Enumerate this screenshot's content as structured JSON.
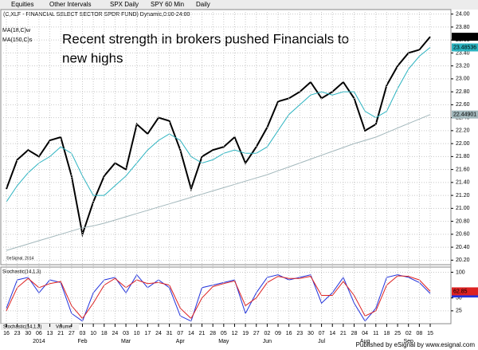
{
  "ui": {
    "toolbar": [
      "Equities",
      "Other Intervals",
      "SPX Daily",
      "SPY 60 Min",
      "Daily"
    ],
    "watermark": "©eSignal, 2014",
    "bottom_tabs": [
      "Stochastic(14,1,3)",
      "Volume"
    ],
    "footer": "Published by eSignal by www.esignal.com"
  },
  "chart_data": [
    {
      "type": "line",
      "title": "(C,XLF - FINANCIAL SELECT SECTOR SPDR FUND) Dynamic,0:00-24:00",
      "annotation": [
        "Recent strength in brokers pushed Financials to",
        "new highs"
      ],
      "categories": [
        "16",
        "23",
        "30",
        "06",
        "13",
        "21",
        "27",
        "03",
        "10",
        "18",
        "24",
        "03",
        "10",
        "17",
        "24",
        "31",
        "07",
        "14",
        "21",
        "28",
        "05",
        "12",
        "19",
        "27",
        "02",
        "09",
        "16",
        "23",
        "30",
        "07",
        "14",
        "21",
        "28",
        "04",
        "11",
        "18",
        "25",
        "02",
        "08",
        "15"
      ],
      "months": [
        null,
        null,
        null,
        "2014",
        null,
        null,
        null,
        "Feb",
        null,
        null,
        null,
        "Mar",
        null,
        null,
        null,
        null,
        "Apr",
        null,
        null,
        null,
        "May",
        null,
        null,
        null,
        "Jun",
        null,
        null,
        null,
        null,
        "Jul",
        null,
        null,
        null,
        "Aug",
        null,
        null,
        null,
        "Sep",
        null,
        null
      ],
      "series": [
        {
          "name": "XLF",
          "color": "#000000",
          "values": [
            21.3,
            21.75,
            21.9,
            21.8,
            22.05,
            22.1,
            21.5,
            20.6,
            21.1,
            21.5,
            21.7,
            21.6,
            22.3,
            22.15,
            22.4,
            22.35,
            21.9,
            21.3,
            21.8,
            21.9,
            21.95,
            22.1,
            21.7,
            21.95,
            22.25,
            22.65,
            22.7,
            22.8,
            22.95,
            22.7,
            22.8,
            22.95,
            22.7,
            22.2,
            22.3,
            22.9,
            23.2,
            23.4,
            23.45,
            23.65
          ]
        },
        {
          "name": "MA(18,C)w",
          "color": "#2bb3c0",
          "values": [
            21.1,
            21.35,
            21.55,
            21.7,
            21.8,
            21.95,
            21.85,
            21.5,
            21.2,
            21.2,
            21.35,
            21.5,
            21.7,
            21.9,
            22.05,
            22.15,
            22.05,
            21.8,
            21.7,
            21.75,
            21.85,
            21.9,
            21.85,
            21.85,
            21.95,
            22.2,
            22.45,
            22.6,
            22.75,
            22.8,
            22.75,
            22.8,
            22.8,
            22.5,
            22.4,
            22.5,
            22.85,
            23.15,
            23.35,
            23.48536
          ]
        },
        {
          "name": "MA(150,C)s",
          "color": "#a3b8bc",
          "values": [
            20.35,
            20.4,
            20.45,
            20.5,
            20.55,
            20.6,
            20.65,
            20.7,
            20.73,
            20.77,
            20.82,
            20.87,
            20.92,
            20.97,
            21.02,
            21.07,
            21.12,
            21.17,
            21.22,
            21.27,
            21.32,
            21.37,
            21.42,
            21.47,
            21.52,
            21.58,
            21.64,
            21.7,
            21.76,
            21.82,
            21.88,
            21.94,
            22.0,
            22.05,
            22.1,
            22.17,
            22.24,
            22.31,
            22.38,
            22.44901
          ]
        }
      ],
      "ylim": [
        20.13,
        24.07
      ],
      "yticks": [
        {
          "value": 20.2,
          "label": "20.20"
        },
        {
          "value": 20.4,
          "label": "20.40"
        },
        {
          "value": 20.6,
          "label": "20.60"
        },
        {
          "value": 20.8,
          "label": "20.80"
        },
        {
          "value": 21,
          "label": "21.00"
        },
        {
          "value": 21.2,
          "label": "21.20"
        },
        {
          "value": 21.4,
          "label": "21.40"
        },
        {
          "value": 21.6,
          "label": "21.60"
        },
        {
          "value": 21.8,
          "label": "21.80"
        },
        {
          "value": 22,
          "label": "22.00"
        },
        {
          "value": 22.2,
          "label": "22.20"
        },
        {
          "value": 22.4,
          "label": "22.40"
        },
        {
          "value": 22.6,
          "label": "22.60"
        },
        {
          "value": 22.8,
          "label": "22.80"
        },
        {
          "value": 23,
          "label": "23.00"
        },
        {
          "value": 23.2,
          "label": "23.20"
        },
        {
          "value": 23.4,
          "label": "23.40"
        },
        {
          "value": 23.6,
          "label": "23.60"
        },
        {
          "value": 23.8,
          "label": "23.80"
        },
        {
          "value": 24,
          "label": "24.00"
        }
      ],
      "grid": true
    },
    {
      "type": "line",
      "title": "Stochastic(14,1,3)",
      "series": [
        {
          "name": "%K",
          "color": "#2233dd",
          "values": [
            30,
            85,
            90,
            60,
            85,
            80,
            20,
            5,
            60,
            85,
            90,
            60,
            95,
            70,
            85,
            70,
            15,
            5,
            70,
            75,
            80,
            85,
            20,
            60,
            90,
            95,
            85,
            90,
            95,
            40,
            60,
            90,
            40,
            5,
            30,
            90,
            95,
            90,
            80,
            58.66
          ]
        },
        {
          "name": "%D",
          "color": "#dd2222",
          "values": [
            25,
            70,
            88,
            70,
            78,
            82,
            35,
            10,
            40,
            75,
            88,
            70,
            85,
            78,
            80,
            75,
            30,
            10,
            50,
            72,
            78,
            83,
            35,
            50,
            80,
            92,
            88,
            88,
            92,
            55,
            55,
            82,
            55,
            15,
            25,
            75,
            93,
            92,
            85,
            62.85
          ]
        }
      ],
      "ylim": [
        0,
        110
      ],
      "yticks": [
        25,
        50,
        100
      ],
      "grid": true
    }
  ]
}
